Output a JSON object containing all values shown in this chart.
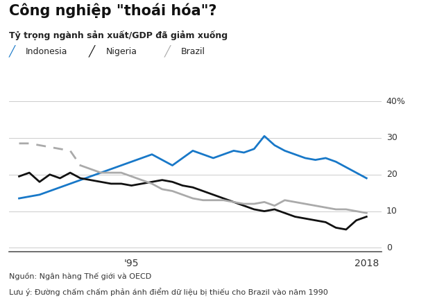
{
  "title": "Công nghiệp \"thoái hóa\"?",
  "subtitle": "Tỷ trọng ngành sản xuất/GDP đã giảm xuống",
  "footnote1": "Nguồn: Ngân hàng Thế giới và OECD",
  "footnote2": "Lưu ý: Đường chấm chấm phản ánh điểm dữ liệu bị thiếu cho Brazil vào năm 1990",
  "legend": [
    "Indonesia",
    "Nigeria",
    "Brazil"
  ],
  "legend_colors": [
    "#1878C8",
    "#111111",
    "#AAAAAA"
  ],
  "yticks": [
    0,
    10,
    20,
    30,
    40
  ],
  "ytick_labels": [
    "0",
    "10",
    "20",
    "30",
    "40%"
  ],
  "xtick_labels": [
    "'95",
    "2018"
  ],
  "xtick_positions": [
    1995,
    2018
  ],
  "xlim": [
    1983,
    2019.5
  ],
  "ylim": [
    -1,
    42
  ],
  "background_color": "#FFFFFF",
  "indonesia": {
    "years": [
      1984,
      1985,
      1986,
      1987,
      1988,
      1989,
      1990,
      1991,
      1992,
      1993,
      1994,
      1995,
      1996,
      1997,
      1998,
      1999,
      2000,
      2001,
      2002,
      2003,
      2004,
      2005,
      2006,
      2007,
      2008,
      2009,
      2010,
      2011,
      2012,
      2013,
      2014,
      2015,
      2016,
      2017,
      2018
    ],
    "values": [
      13.5,
      14.0,
      14.5,
      15.5,
      16.5,
      17.5,
      18.5,
      19.5,
      20.5,
      21.5,
      22.5,
      23.5,
      24.5,
      25.5,
      24.0,
      22.5,
      24.5,
      26.5,
      25.5,
      24.5,
      25.5,
      26.5,
      26.0,
      27.0,
      30.5,
      28.0,
      26.5,
      25.5,
      24.5,
      24.0,
      24.5,
      23.5,
      22.0,
      20.5,
      19.0
    ],
    "color": "#1878C8",
    "linewidth": 2.0
  },
  "nigeria": {
    "years": [
      1984,
      1985,
      1986,
      1987,
      1988,
      1989,
      1990,
      1991,
      1992,
      1993,
      1994,
      1995,
      1996,
      1997,
      1998,
      1999,
      2000,
      2001,
      2002,
      2003,
      2004,
      2005,
      2006,
      2007,
      2008,
      2009,
      2010,
      2011,
      2012,
      2013,
      2014,
      2015,
      2016,
      2017,
      2018
    ],
    "values": [
      19.5,
      20.5,
      18.0,
      20.0,
      19.0,
      20.5,
      19.0,
      18.5,
      18.0,
      17.5,
      17.5,
      17.0,
      17.5,
      18.0,
      18.5,
      18.0,
      17.0,
      16.5,
      15.5,
      14.5,
      13.5,
      12.5,
      11.5,
      10.5,
      10.0,
      10.5,
      9.5,
      8.5,
      8.0,
      7.5,
      7.0,
      5.5,
      5.0,
      7.5,
      8.5
    ],
    "color": "#111111",
    "linewidth": 2.0
  },
  "brazil_dashed": {
    "years": [
      1984,
      1985,
      1986,
      1987,
      1988,
      1989,
      1990
    ],
    "values": [
      28.5,
      28.5,
      28.0,
      27.5,
      27.0,
      26.5,
      22.5
    ],
    "color": "#AAAAAA",
    "linewidth": 2.0
  },
  "brazil_solid": {
    "years": [
      1990,
      1991,
      1992,
      1993,
      1994,
      1995,
      1996,
      1997,
      1998,
      1999,
      2000,
      2001,
      2002,
      2003,
      2004,
      2005,
      2006,
      2007,
      2008,
      2009,
      2010,
      2011,
      2012,
      2013,
      2014,
      2015,
      2016,
      2017,
      2018
    ],
    "values": [
      22.5,
      21.5,
      20.5,
      20.5,
      20.5,
      19.5,
      18.5,
      17.5,
      16.0,
      15.5,
      14.5,
      13.5,
      13.0,
      13.0,
      13.0,
      12.5,
      12.0,
      12.0,
      12.5,
      11.5,
      13.0,
      12.5,
      12.0,
      11.5,
      11.0,
      10.5,
      10.5,
      10.0,
      9.5
    ],
    "color": "#AAAAAA",
    "linewidth": 2.0
  }
}
